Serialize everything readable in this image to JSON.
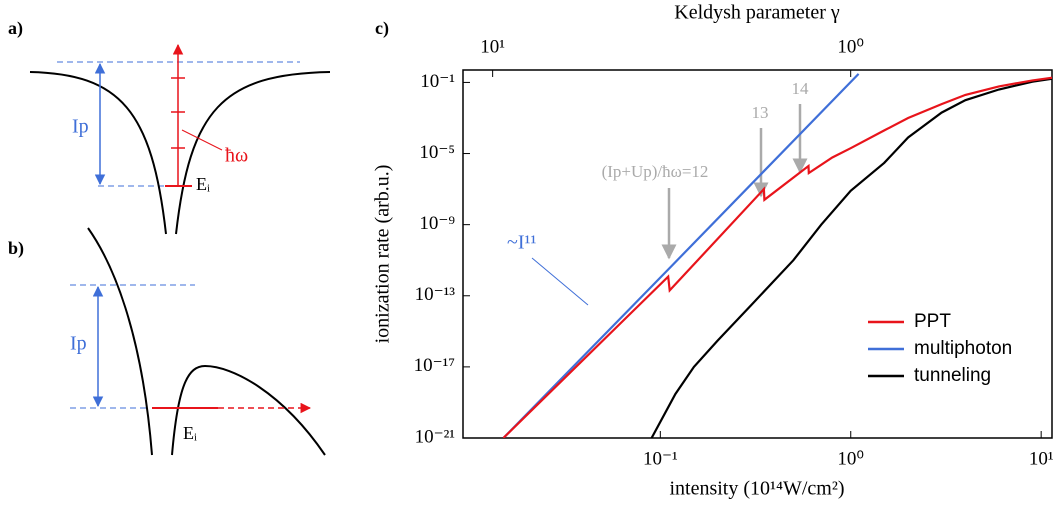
{
  "panels": {
    "a": {
      "label": "a)",
      "ip": "Ip",
      "photon": "ħω",
      "level": "Eᵢ"
    },
    "b": {
      "label": "b)",
      "ip": "Ip",
      "level": "Eᵢ"
    },
    "c": {
      "label": "c)"
    }
  },
  "chart_data": {
    "type": "line",
    "x_label": "intensity (10¹⁴W/cm²)",
    "y_label": "ionization rate (arb.u.)",
    "x2_label": "Keldysh parameter γ",
    "log_x": true,
    "log_y": true,
    "xlim": [
      0.0092,
      11.4
    ],
    "ylim": [
      1e-21,
      0.5
    ],
    "x2lim": [
      12.1,
      0.274
    ],
    "xticks": [
      {
        "value": 0.1,
        "label": "10⁻¹"
      },
      {
        "value": 1,
        "label": "10⁰"
      },
      {
        "value": 10,
        "label": "10¹"
      }
    ],
    "x2ticks": [
      {
        "value": 10,
        "label": "10¹"
      },
      {
        "value": 1,
        "label": "10⁰"
      }
    ],
    "yticks": [
      {
        "value": 1e-21,
        "label": "10⁻²¹"
      },
      {
        "value": 1e-17,
        "label": "10⁻¹⁷"
      },
      {
        "value": 1e-13,
        "label": "10⁻¹³"
      },
      {
        "value": 1e-09,
        "label": "10⁻⁹"
      },
      {
        "value": 1e-05,
        "label": "10⁻⁵"
      },
      {
        "value": 0.1,
        "label": "10⁻¹"
      }
    ],
    "legend_position": "lower right",
    "series": [
      {
        "name": "PPT",
        "color": "#e8141b",
        "x": [
          0.015,
          0.11,
          0.112,
          0.35,
          0.352,
          0.6,
          0.602,
          0.8,
          1,
          1.5,
          2,
          3,
          4,
          6,
          9,
          13
        ],
        "values": [
          1e-21,
          1.2e-12,
          2e-13,
          1e-07,
          2.5e-08,
          2e-06,
          8e-07,
          6e-06,
          2e-05,
          0.0002,
          0.001,
          0.006,
          0.02,
          0.06,
          0.13,
          0.22
        ]
      },
      {
        "name": "multiphoton",
        "color": "#3f6fd8",
        "x": [
          0.015,
          0.11,
          1.1
        ],
        "values": [
          1e-21,
          3e-12,
          0.3
        ]
      },
      {
        "name": "tunneling",
        "color": "#000000",
        "x": [
          0.09,
          0.12,
          0.15,
          0.2,
          0.3,
          0.5,
          0.7,
          1,
          1.5,
          2,
          3,
          4,
          6,
          9,
          13
        ],
        "values": [
          1e-21,
          3e-19,
          1e-17,
          3e-16,
          3e-14,
          1e-11,
          1e-09,
          8e-08,
          3e-06,
          8e-05,
          0.002,
          0.01,
          0.04,
          0.11,
          0.2
        ]
      }
    ],
    "annotations": [
      "~I¹¹",
      "(Ip+Up)/ħω=12",
      "13",
      "14"
    ]
  }
}
